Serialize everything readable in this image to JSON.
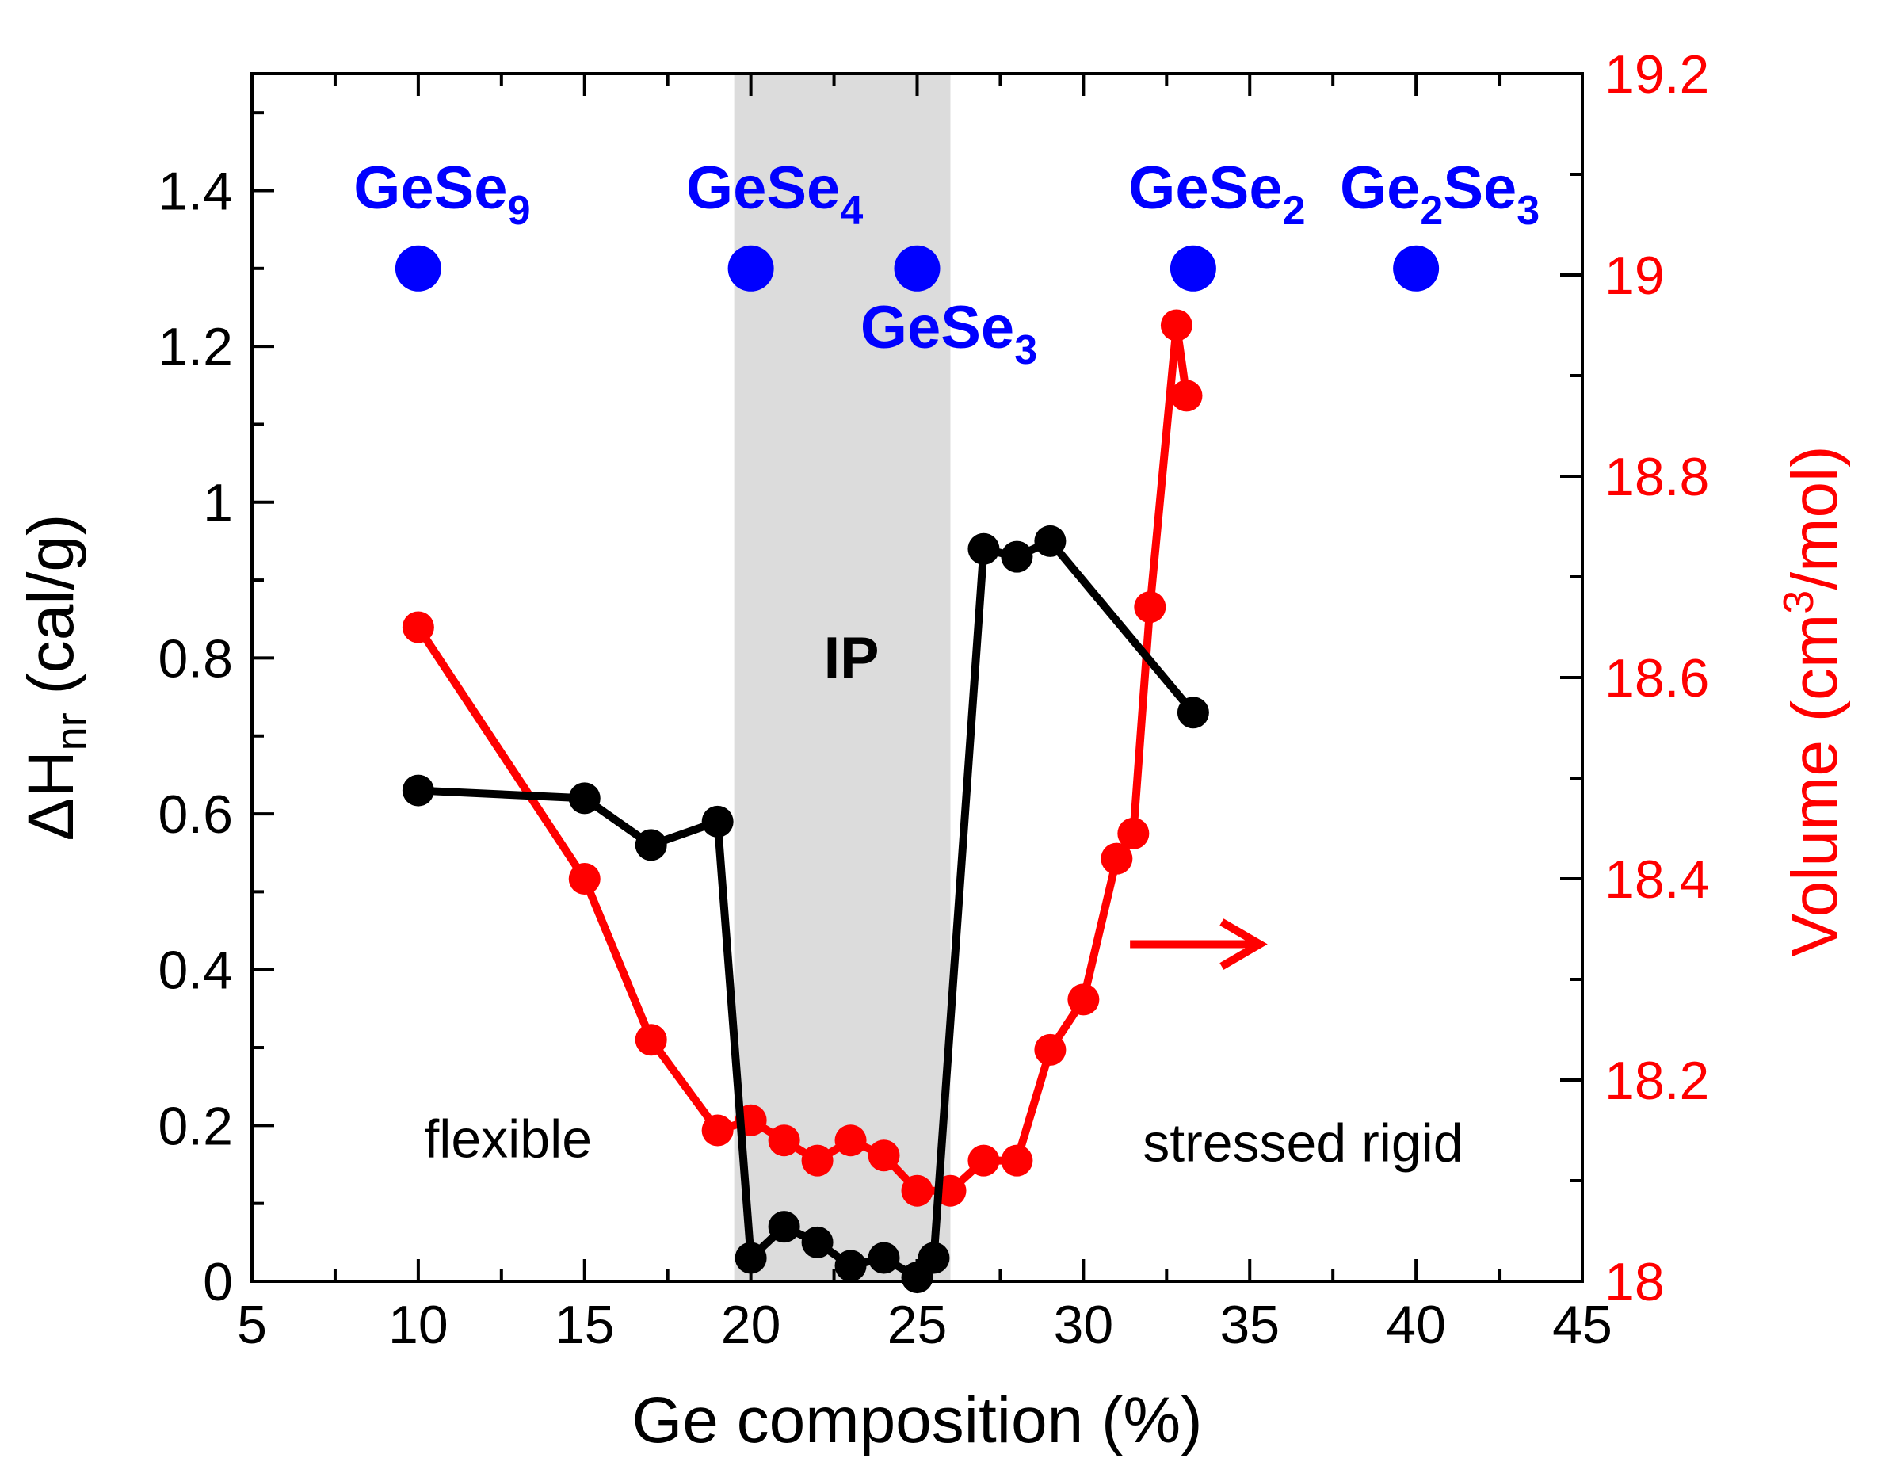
{
  "chart_data": {
    "type": "line",
    "xlabel": "Ge composition (%)",
    "ylabel": {
      "main": "ΔH",
      "sub": "nr",
      "unit": " (cal/g)"
    },
    "y2label": {
      "pre": "Volume (cm",
      "sup": "3",
      "post": "/mol)"
    },
    "xlim": [
      5,
      45
    ],
    "ylim": [
      0,
      1.55
    ],
    "y2lim": [
      18,
      19.2
    ],
    "xticks": [
      "5",
      "10",
      "15",
      "20",
      "25",
      "30",
      "35",
      "40",
      "45"
    ],
    "yticks": [
      "0",
      "0.2",
      "0.4",
      "0.6",
      "0.8",
      "1",
      "1.2",
      "1.4"
    ],
    "y2ticks": [
      "18",
      "18.2",
      "18.4",
      "18.6",
      "18.8",
      "19",
      "19.2"
    ],
    "colors": {
      "enthalpy": "#000000",
      "volume": "#ff0000",
      "compounds": "#0000ff",
      "ip_band": "#dcdcdc"
    },
    "series": [
      {
        "name": "ΔHnr",
        "axis": "left",
        "x": [
          10,
          15,
          17,
          19,
          20,
          21,
          22,
          23,
          24,
          25,
          25.5,
          27,
          28,
          29,
          33.3
        ],
        "values": [
          0.63,
          0.62,
          0.56,
          0.59,
          0.03,
          0.07,
          0.05,
          0.02,
          0.03,
          0.005,
          0.03,
          0.94,
          0.93,
          0.95,
          0.73
        ]
      },
      {
        "name": "Volume",
        "axis": "right",
        "x": [
          10,
          15,
          17,
          19,
          20,
          21,
          22,
          23,
          24,
          25,
          26,
          27,
          28,
          29,
          30,
          31,
          31.5,
          32,
          32.8,
          33.1
        ],
        "values": [
          18.65,
          18.4,
          18.24,
          18.15,
          18.16,
          18.14,
          18.12,
          18.14,
          18.125,
          18.09,
          18.09,
          18.12,
          18.12,
          18.23,
          18.28,
          18.42,
          18.445,
          18.67,
          18.95,
          18.88
        ]
      }
    ],
    "compounds": [
      {
        "x": 10,
        "y": 1.3,
        "name": "GeSe",
        "sub": "9",
        "label_pos": "above"
      },
      {
        "x": 20,
        "y": 1.3,
        "name": "GeSe",
        "sub": "4",
        "label_pos": "above"
      },
      {
        "x": 25,
        "y": 1.3,
        "name": "GeSe",
        "sub": "3",
        "label_pos": "below"
      },
      {
        "x": 33.3,
        "y": 1.3,
        "name": "GeSe",
        "sub": "2",
        "label_pos": "above"
      },
      {
        "x": 40,
        "y": 1.3,
        "name": "Ge",
        "sub": "2",
        "name2": "Se",
        "sub2": "3",
        "label_pos": "above"
      }
    ],
    "ip_band": {
      "x_start": 19.5,
      "x_end": 26,
      "label": "IP"
    },
    "region_labels": {
      "flexible": "flexible",
      "stressed": "stressed rigid"
    },
    "arrow": {
      "direction": "right",
      "color": "#ff0000"
    }
  }
}
